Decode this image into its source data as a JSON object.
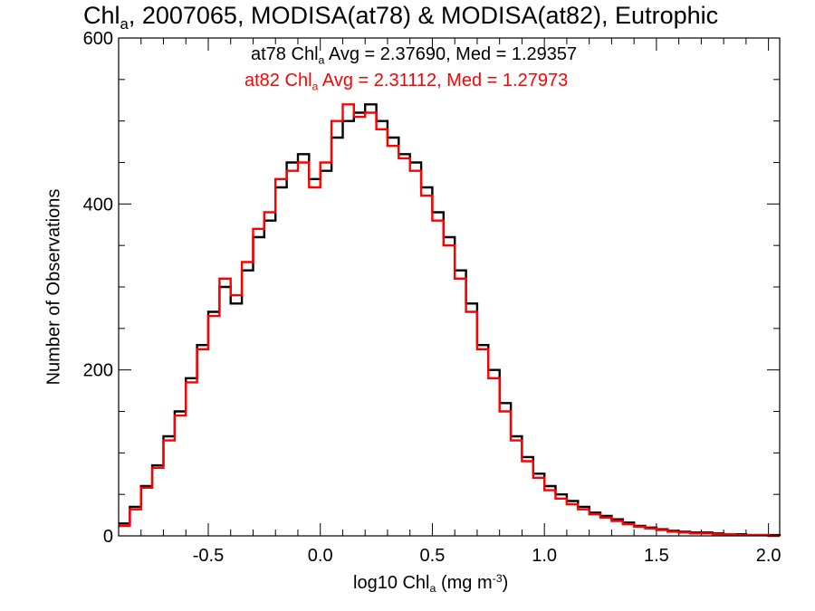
{
  "chart_data": {
    "type": "line",
    "title_prefix": "Chl",
    "title_sub": "a",
    "title_suffix": ", 2007065, MODISA(at78) & MODISA(at82), Eutrophic",
    "xlabel_prefix": "log10 Chl",
    "xlabel_sub": "a",
    "xlabel_unit": " (mg m",
    "xlabel_sup": "-3",
    "xlabel_close": ")",
    "ylabel": "Number of Observations",
    "xlim": [
      -0.9,
      2.05
    ],
    "ylim": [
      0,
      600
    ],
    "xticks": [
      "-0.5",
      "0.0",
      "0.5",
      "1.0",
      "1.5",
      "2.0"
    ],
    "yticks": [
      "0",
      "200",
      "400",
      "600"
    ],
    "xtick_values": [
      -0.5,
      0.0,
      0.5,
      1.0,
      1.5,
      2.0
    ],
    "ytick_values": [
      0,
      200,
      400,
      600
    ],
    "legend": [
      {
        "name": "at78",
        "stat_label": "Chl",
        "stat_sub": "a",
        "stats": " Avg = 2.37690, Med = 1.29357"
      },
      {
        "name": "at82",
        "stat_label": "Chl",
        "stat_sub": "a",
        "stats": " Avg = 2.31112, Med = 1.27973"
      }
    ],
    "colors": {
      "at78": "#000000",
      "at82": "#ff0000"
    },
    "series": [
      {
        "name": "at78",
        "x": [
          -0.9,
          -0.85,
          -0.8,
          -0.75,
          -0.7,
          -0.65,
          -0.6,
          -0.55,
          -0.5,
          -0.45,
          -0.4,
          -0.35,
          -0.3,
          -0.25,
          -0.2,
          -0.15,
          -0.1,
          -0.05,
          0.0,
          0.05,
          0.1,
          0.15,
          0.2,
          0.25,
          0.3,
          0.35,
          0.4,
          0.45,
          0.5,
          0.55,
          0.6,
          0.65,
          0.7,
          0.75,
          0.8,
          0.85,
          0.9,
          0.95,
          1.0,
          1.05,
          1.1,
          1.15,
          1.2,
          1.25,
          1.3,
          1.35,
          1.4,
          1.45,
          1.5,
          1.55,
          1.6,
          1.65,
          1.7,
          1.75,
          1.8,
          1.85,
          1.9,
          1.95,
          2.0,
          2.05
        ],
        "y": [
          15,
          35,
          60,
          85,
          120,
          150,
          190,
          230,
          270,
          300,
          280,
          320,
          360,
          380,
          420,
          450,
          460,
          430,
          440,
          480,
          500,
          510,
          520,
          500,
          480,
          460,
          450,
          420,
          390,
          360,
          320,
          280,
          230,
          200,
          160,
          120,
          95,
          75,
          60,
          50,
          42,
          35,
          28,
          24,
          20,
          16,
          12,
          10,
          8,
          6,
          5,
          4,
          4,
          3,
          2,
          2,
          1,
          1,
          1,
          0
        ]
      },
      {
        "name": "at82",
        "x": [
          -0.9,
          -0.85,
          -0.8,
          -0.75,
          -0.7,
          -0.65,
          -0.6,
          -0.55,
          -0.5,
          -0.45,
          -0.4,
          -0.35,
          -0.3,
          -0.25,
          -0.2,
          -0.15,
          -0.1,
          -0.05,
          0.0,
          0.05,
          0.1,
          0.15,
          0.2,
          0.25,
          0.3,
          0.35,
          0.4,
          0.45,
          0.5,
          0.55,
          0.6,
          0.65,
          0.7,
          0.75,
          0.8,
          0.85,
          0.9,
          0.95,
          1.0,
          1.05,
          1.1,
          1.15,
          1.2,
          1.25,
          1.3,
          1.35,
          1.4,
          1.45,
          1.5,
          1.55,
          1.6,
          1.65,
          1.7,
          1.75,
          1.8,
          1.85,
          1.9,
          1.95,
          2.0,
          2.05
        ],
        "y": [
          12,
          32,
          58,
          82,
          115,
          145,
          185,
          225,
          265,
          310,
          290,
          330,
          370,
          390,
          430,
          440,
          450,
          420,
          450,
          500,
          520,
          505,
          510,
          490,
          470,
          455,
          440,
          410,
          380,
          350,
          310,
          270,
          225,
          190,
          150,
          115,
          90,
          70,
          55,
          45,
          38,
          32,
          26,
          22,
          18,
          14,
          11,
          9,
          7,
          5,
          4,
          3,
          3,
          2,
          2,
          1,
          1,
          1,
          0,
          0
        ]
      }
    ]
  }
}
